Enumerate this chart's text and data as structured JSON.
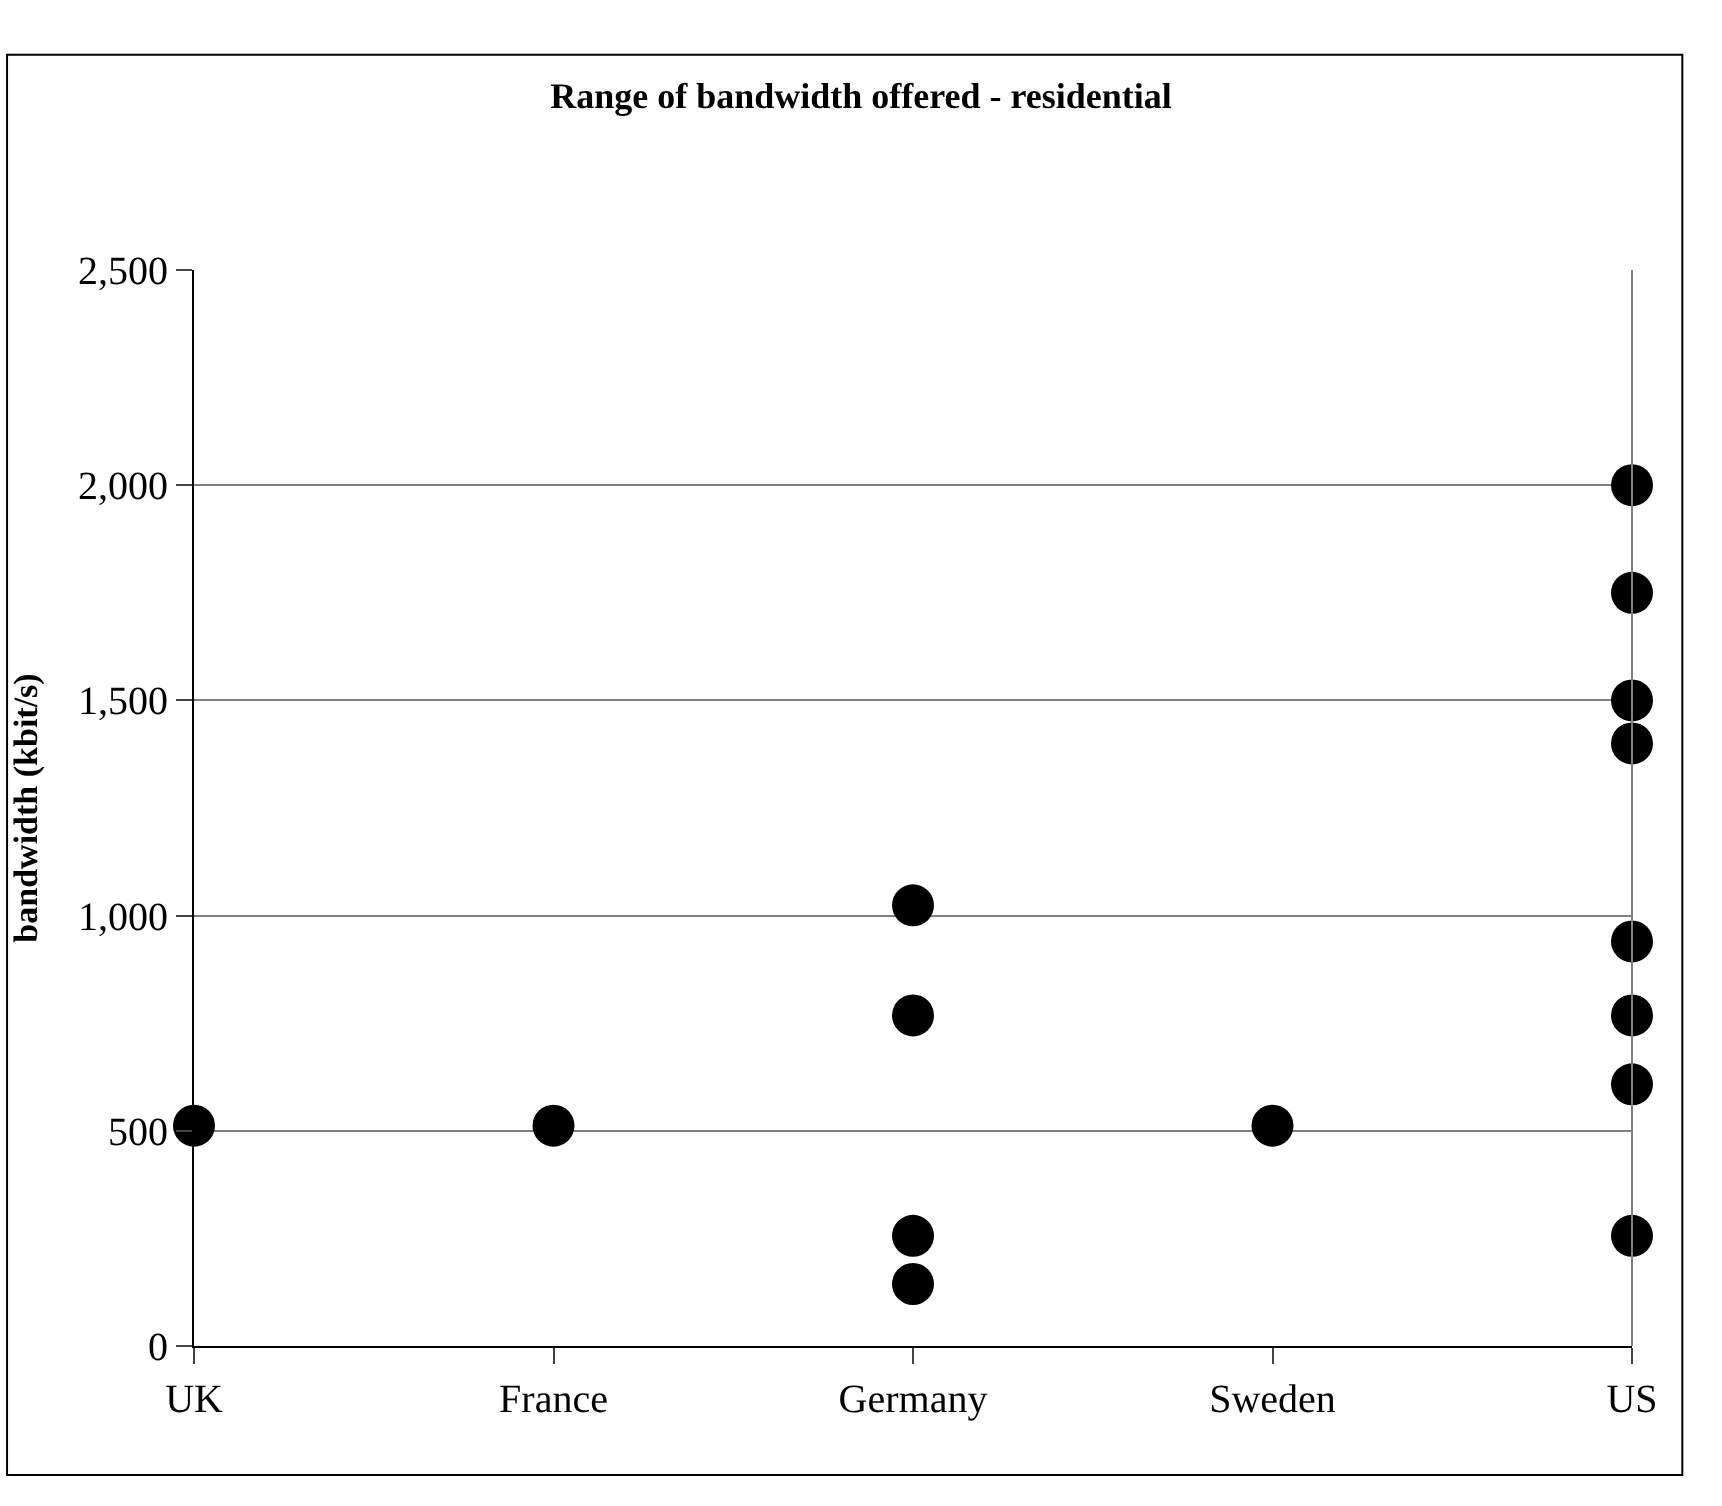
{
  "chart_data": {
    "type": "scatter",
    "title": "Range of bandwidth offered - residential",
    "ylabel": "bandwidth (kbit/s)",
    "categories": [
      "UK",
      "France",
      "Germany",
      "Sweden",
      "US"
    ],
    "series": [
      {
        "color": "#000000",
        "x": [
          "UK",
          "France",
          "Germany",
          "Germany",
          "Germany",
          "Germany",
          "Sweden",
          "US",
          "US",
          "US",
          "US",
          "US",
          "US",
          "US",
          "US"
        ],
        "values": [
          512,
          512,
          1024,
          768,
          256,
          144,
          512,
          2000,
          1750,
          1500,
          1400,
          940,
          768,
          608,
          256
        ]
      }
    ],
    "ylim": [
      0,
      2500
    ],
    "yticks": [
      {
        "value": 0,
        "label": "0"
      },
      {
        "value": 500,
        "label": "500"
      },
      {
        "value": 1000,
        "label": "1,000"
      },
      {
        "value": 1500,
        "label": "1,500"
      },
      {
        "value": 2000,
        "label": "2,000"
      },
      {
        "value": 2500,
        "label": "2,500"
      }
    ],
    "grid": "y",
    "legend": false,
    "marker": "circle"
  }
}
